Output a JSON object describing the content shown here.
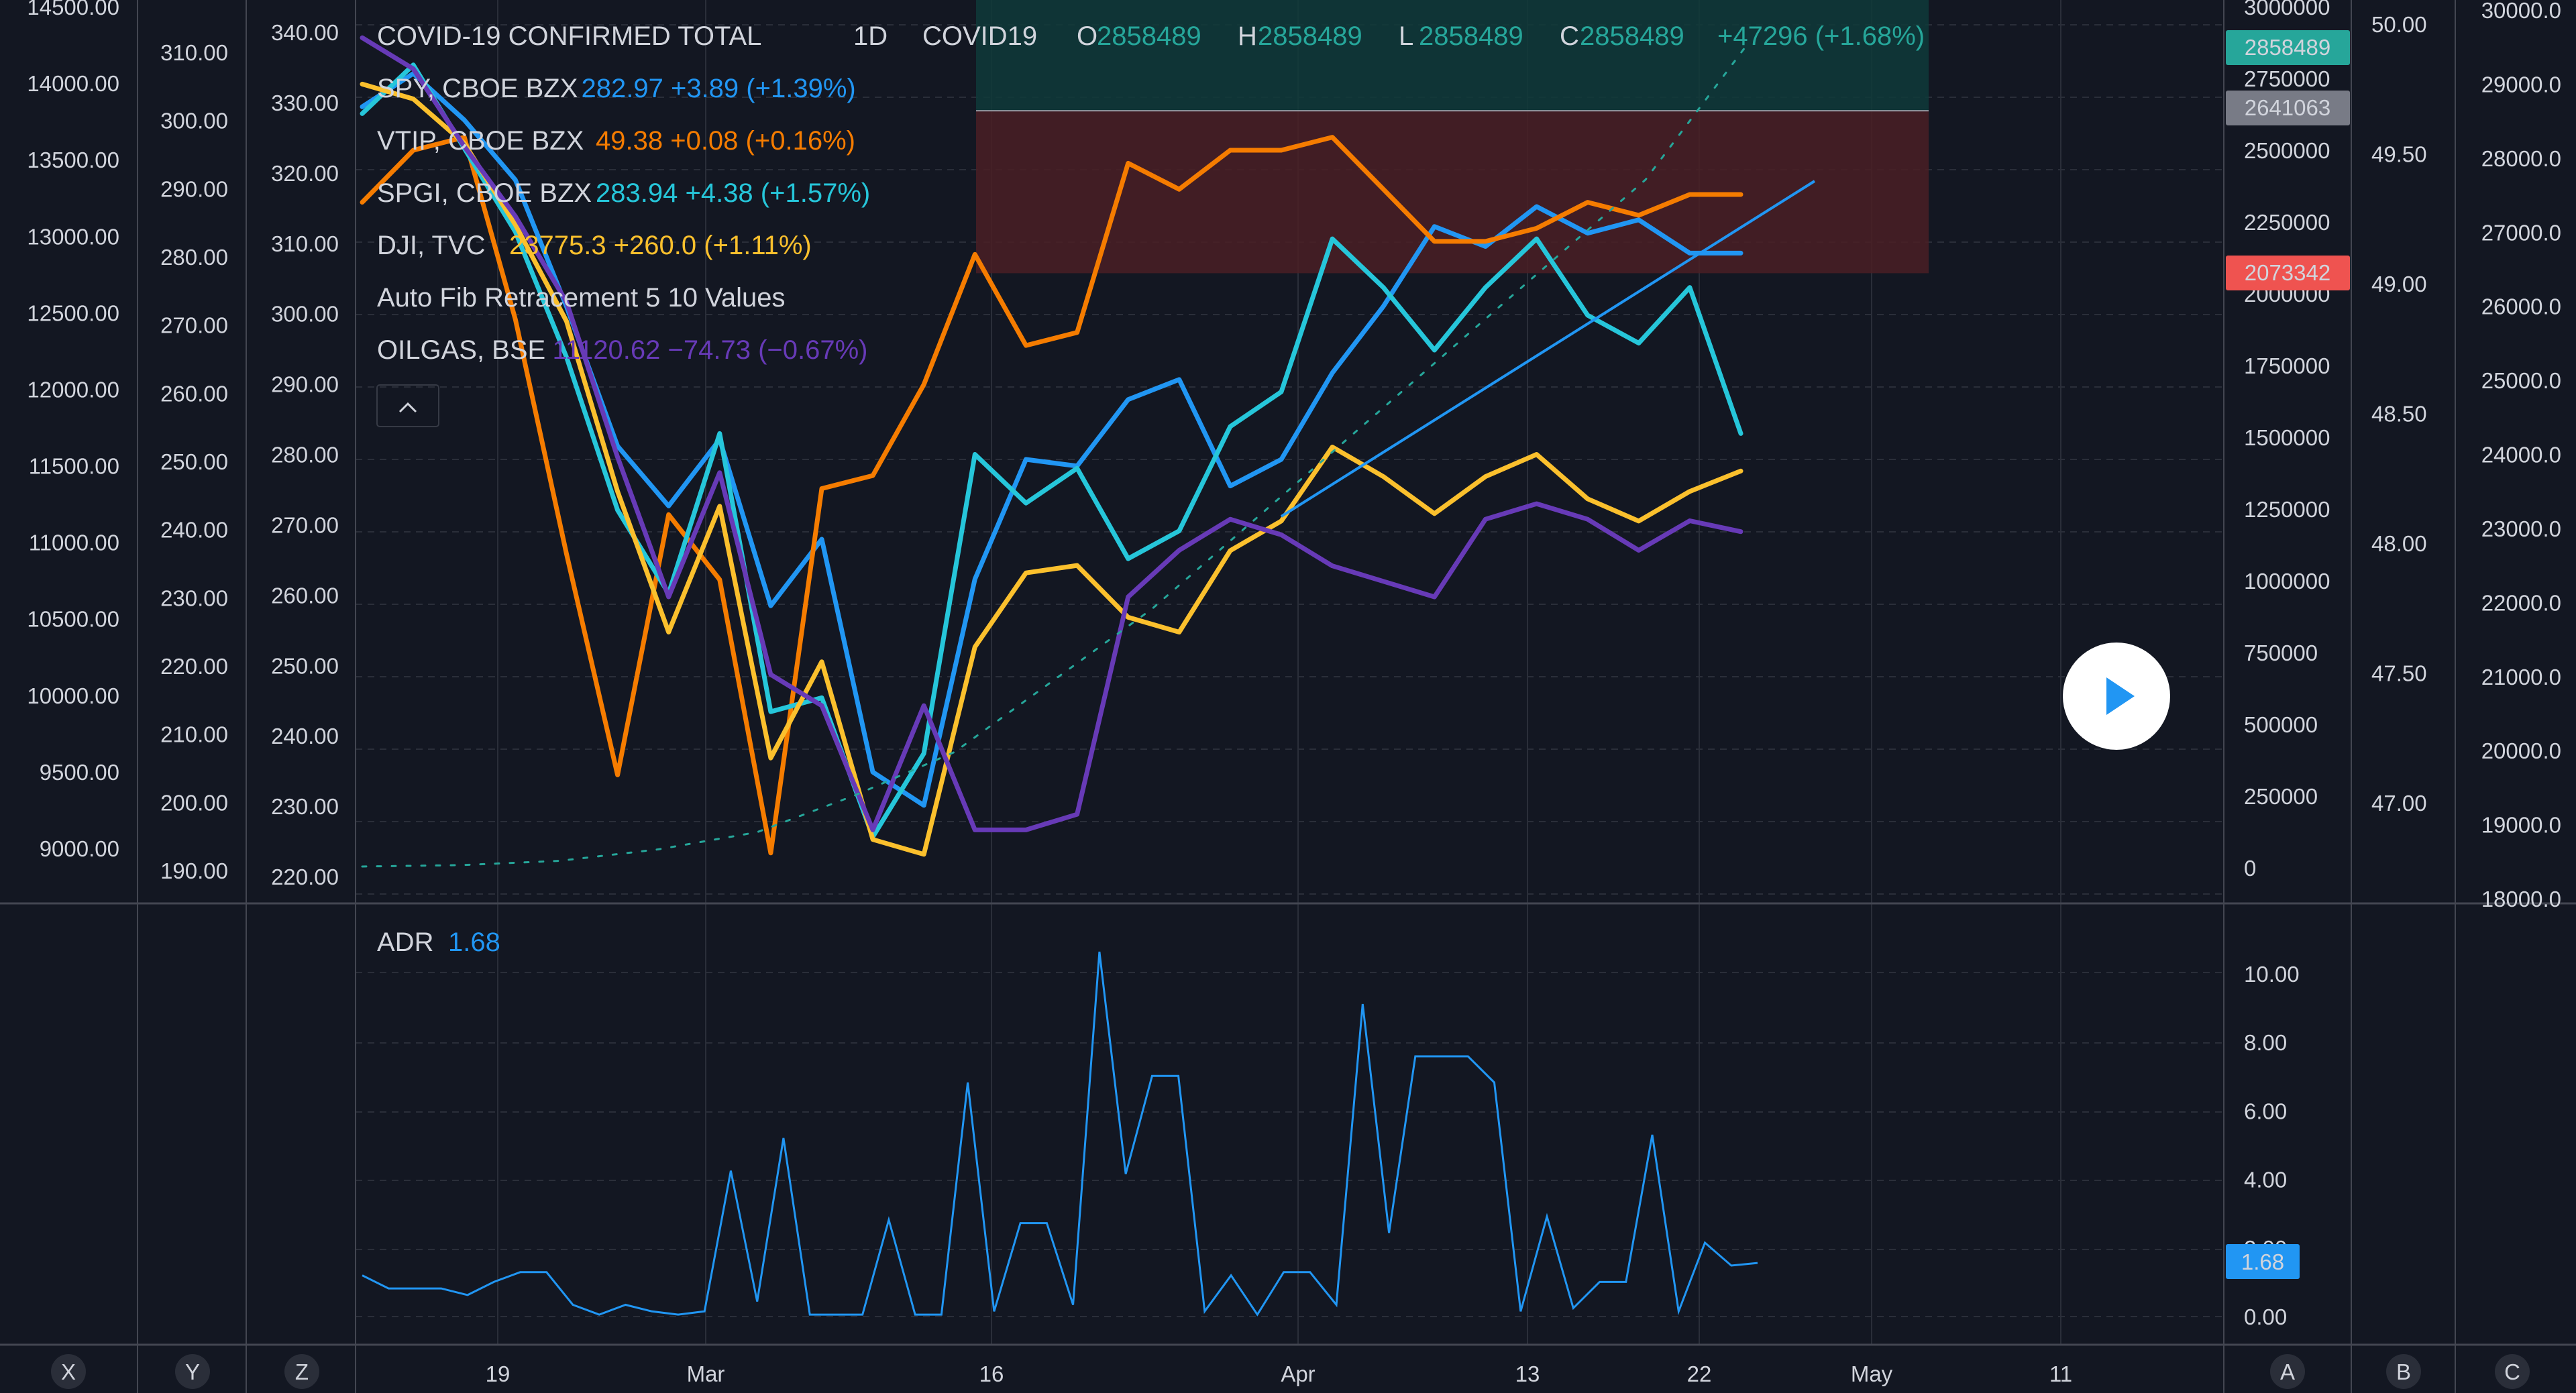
{
  "chart_data": [
    {
      "type": "line",
      "title": "COVID-19 CONFIRMED TOTAL",
      "header": {
        "symbol": "COVID-19 CONFIRMED TOTAL",
        "interval": "1D",
        "source": "COVID19",
        "ohlc": [
          {
            "label": "O",
            "value": "2858489"
          },
          {
            "label": "H",
            "value": "2858489"
          },
          {
            "label": "L",
            "value": "2858489"
          },
          {
            "label": "C",
            "value": "2858489"
          }
        ],
        "change": "+47296 (+1.68%)"
      },
      "legend": [
        {
          "name": "SPY, CBOE BZX",
          "value": "282.97 +3.89 (+1.39%)",
          "color": "#2196f3"
        },
        {
          "name": "VTIP, CBOE BZX",
          "value": "49.38 +0.08 (+0.16%)",
          "color": "#f57c00"
        },
        {
          "name": "SPGI, CBOE BZX",
          "value": "283.94 +4.38 (+1.57%)",
          "color": "#26c6da"
        },
        {
          "name": "DJI, TVC",
          "value": "23775.3 +260.0 (+1.11%)",
          "color": "#fbc02d"
        },
        {
          "name": "Auto Fib Retracement 5 10 Values",
          "value": "",
          "color": "#d1d4dc"
        },
        {
          "name": "OILGAS, BSE",
          "value": "11120.62 −74.73 (−0.67%)",
          "color": "#673ab7"
        }
      ],
      "x_ticks": [
        "19",
        "Mar",
        "16",
        "Apr",
        "13",
        "22",
        "May",
        "11"
      ],
      "axes_ticks": {
        "oilgas": [
          "14500.00",
          "14000.00",
          "13500.00",
          "13000.00",
          "12500.00",
          "12000.00",
          "11500.00",
          "11000.00",
          "10500.00",
          "10000.00",
          "9500.00",
          "9000.00"
        ],
        "spy": [
          "310.00",
          "300.00",
          "290.00",
          "280.00",
          "270.00",
          "260.00",
          "250.00",
          "240.00",
          "230.00",
          "220.00",
          "210.00",
          "200.00",
          "190.00"
        ],
        "spgi": [
          "340.00",
          "330.00",
          "320.00",
          "310.00",
          "300.00",
          "290.00",
          "280.00",
          "270.00",
          "260.00",
          "250.00",
          "240.00",
          "230.00",
          "220.00"
        ],
        "covid": [
          "3000000",
          "2750000",
          "2500000",
          "2250000",
          "2000000",
          "1750000",
          "1500000",
          "1250000",
          "1000000",
          "750000",
          "500000",
          "250000",
          "0"
        ],
        "vtip": [
          "50.00",
          "49.50",
          "49.00",
          "48.50",
          "48.00",
          "47.50",
          "47.00"
        ],
        "dji": [
          "30000.0",
          "29000.0",
          "28000.0",
          "27000.0",
          "26000.0",
          "25000.0",
          "24000.0",
          "23000.0",
          "22000.0",
          "21000.0",
          "20000.0",
          "19000.0",
          "18000.0"
        ]
      },
      "price_tags": [
        {
          "text": "2858489",
          "color": "#26a69a"
        },
        {
          "text": "2641063",
          "color": "#787b86"
        },
        {
          "text": "2073342",
          "color": "#ef5350"
        }
      ],
      "fib_levels": [
        2858489,
        2641063,
        2073342
      ],
      "covid_axis_range": [
        0,
        3000000
      ],
      "series": [
        {
          "name": "SPY, CBOE BZX",
          "color": "#2196f3",
          "values": [
            305,
            310,
            303,
            294,
            275,
            254,
            245,
            255,
            230,
            240,
            205,
            200,
            234,
            252,
            251,
            261,
            264,
            248,
            252,
            265,
            275,
            287,
            284,
            290,
            286,
            288,
            283,
            283
          ]
        },
        {
          "name": "VTIP, CBOE BZX",
          "color": "#f57c00",
          "values": [
            49.35,
            49.55,
            49.6,
            48.9,
            48.0,
            47.15,
            48.15,
            47.9,
            46.85,
            48.25,
            48.3,
            48.65,
            49.15,
            48.8,
            48.85,
            49.5,
            49.4,
            49.55,
            49.55,
            49.6,
            49.4,
            49.2,
            49.2,
            49.25,
            49.35,
            49.3,
            49.38,
            49.38
          ]
        },
        {
          "name": "SPGI, CBOE BZX",
          "color": "#26c6da",
          "values": [
            330,
            337,
            325,
            313,
            295,
            273,
            261,
            284,
            244,
            246,
            226,
            238,
            281,
            274,
            279,
            266,
            270,
            285,
            290,
            312,
            305,
            296,
            305,
            312,
            301,
            297,
            305,
            284
          ]
        },
        {
          "name": "DJI, TVC",
          "color": "#fbc02d",
          "values": [
            29000,
            28800,
            28200,
            27100,
            25800,
            23500,
            21600,
            23300,
            19900,
            21200,
            18800,
            18600,
            21400,
            22400,
            22500,
            21800,
            21600,
            22700,
            23100,
            24100,
            23700,
            23200,
            23700,
            24000,
            23400,
            23100,
            23500,
            23775
          ]
        },
        {
          "name": "OILGAS, BSE",
          "color": "#673ab7",
          "values": [
            14300,
            14100,
            13600,
            13150,
            12600,
            11600,
            10700,
            11500,
            10200,
            10000,
            9200,
            10000,
            9200,
            9200,
            9300,
            10700,
            11000,
            11200,
            11100,
            10900,
            10800,
            10700,
            11200,
            11300,
            11200,
            11000,
            11190,
            11120
          ]
        },
        {
          "name": "COVID-19 CONFIRMED TOTAL",
          "color": "#26a69a",
          "style": "dotted",
          "values": [
            0,
            5000,
            20000,
            60000,
            120000,
            250000,
            400000,
            650000,
            900000,
            1200000,
            1500000,
            1800000,
            2100000,
            2400000,
            2858489
          ]
        }
      ]
    },
    {
      "type": "line",
      "title": "ADR",
      "value_label": "1.68",
      "color": "#2196f3",
      "y_ticks": [
        "10.00",
        "8.00",
        "6.00",
        "4.00",
        "2.00",
        "0.00"
      ],
      "ylim": [
        0,
        12
      ],
      "values": [
        1.3,
        0.9,
        0.9,
        0.9,
        0.7,
        1.1,
        1.4,
        1.4,
        0.4,
        0.1,
        0.4,
        0.2,
        0.1,
        0.2,
        4.5,
        0.5,
        5.5,
        0.1,
        0.1,
        0.1,
        3.0,
        0.1,
        0.1,
        7.2,
        0.2,
        2.9,
        2.9,
        0.4,
        11.2,
        4.4,
        7.4,
        7.4,
        0.2,
        1.3,
        0.1,
        1.4,
        1.4,
        0.4,
        9.6,
        2.6,
        8.0,
        8.0,
        8.0,
        7.2,
        0.2,
        3.1,
        0.3,
        1.1,
        1.1,
        5.6,
        0.2,
        2.3,
        1.6,
        1.68
      ]
    }
  ],
  "play_button_icon": "play-icon",
  "price_scale_buttons": [
    "X",
    "Y",
    "Z",
    "A",
    "B",
    "C"
  ],
  "collapse_icon": "chevron-up-icon"
}
